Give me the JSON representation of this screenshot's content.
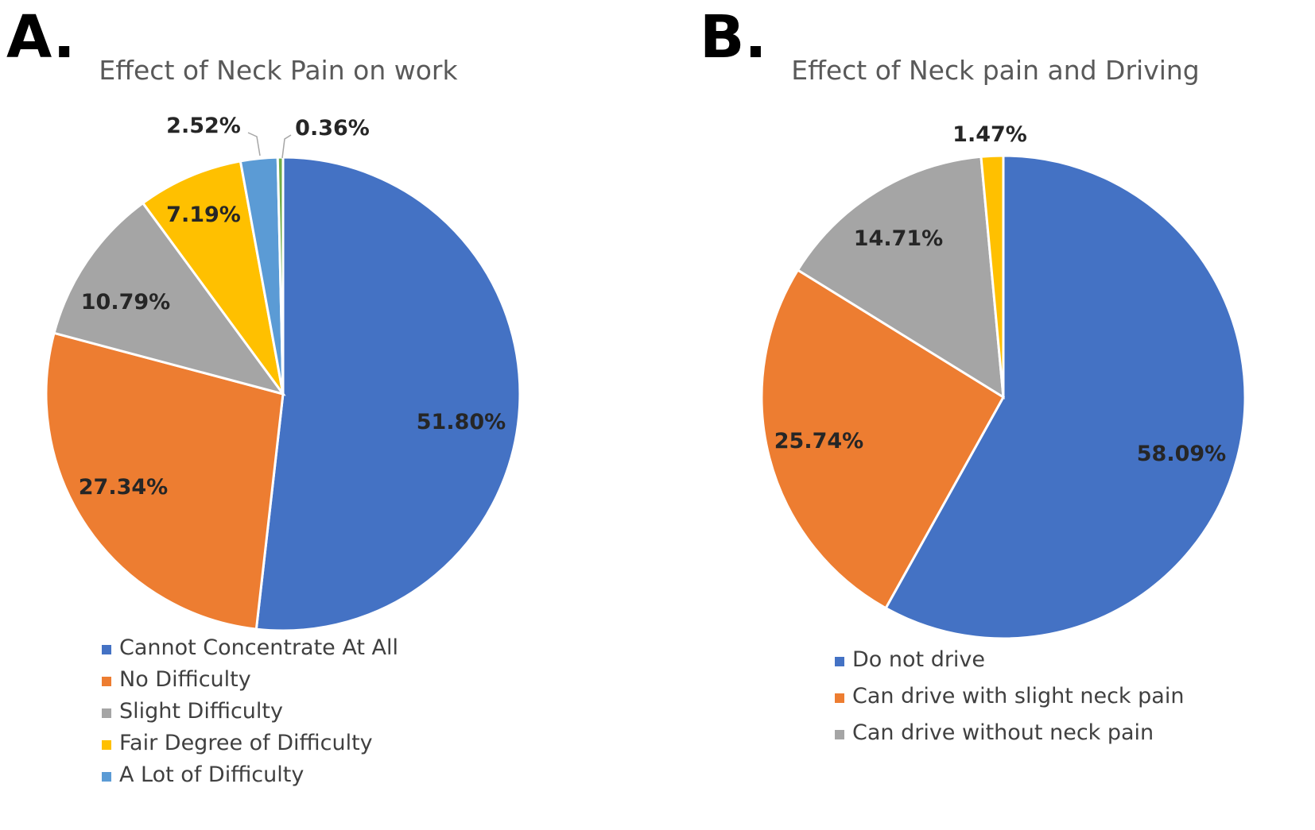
{
  "chart_data": [
    {
      "type": "pie",
      "panel": "A.",
      "title": "Effect of Neck Pain on work",
      "legend_position": "bottom",
      "slices": [
        {
          "label": "Cannot Concentrate At All",
          "value": 51.8,
          "display": "51.80%",
          "color": "#4472C4"
        },
        {
          "label": "No Difficulty",
          "value": 27.34,
          "display": "27.34%",
          "color": "#ED7D31"
        },
        {
          "label": "Slight Difficulty",
          "value": 10.79,
          "display": "10.79%",
          "color": "#A5A5A5"
        },
        {
          "label": "Fair Degree of Difficulty",
          "value": 7.19,
          "display": "7.19%",
          "color": "#FFC000"
        },
        {
          "label": "A Lot of Difficulty",
          "value": 2.52,
          "display": "2.52%",
          "color": "#5B9BD5"
        },
        {
          "label": "",
          "value": 0.36,
          "display": "0.36%",
          "color": "#70AD47"
        }
      ]
    },
    {
      "type": "pie",
      "panel": "B.",
      "title": "Effect of Neck pain and Driving",
      "legend_position": "bottom",
      "slices": [
        {
          "label": "Do not drive",
          "value": 58.09,
          "display": "58.09%",
          "color": "#4472C4"
        },
        {
          "label": "Can drive with slight neck pain",
          "value": 25.74,
          "display": "25.74%",
          "color": "#ED7D31"
        },
        {
          "label": "Can drive without neck pain",
          "value": 14.71,
          "display": "14.71%",
          "color": "#A5A5A5"
        },
        {
          "label": "",
          "value": 1.47,
          "display": "1.47%",
          "color": "#FFC000"
        }
      ]
    }
  ]
}
